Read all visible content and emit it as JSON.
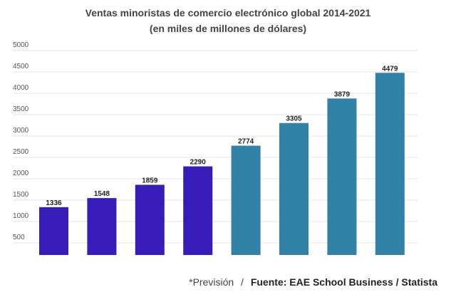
{
  "chart_data": {
    "type": "bar",
    "title": "Ventas minoristas de comercio electrónico global 2014-2021",
    "subtitle": "(en miles de millones de dólares)",
    "values": [
      1336,
      1548,
      1859,
      2290,
      2774,
      3305,
      3879,
      4479
    ],
    "forecast": [
      false,
      false,
      false,
      false,
      true,
      true,
      true,
      true
    ],
    "colors": {
      "actual": "#371cb9",
      "forecast": "#3282a8"
    },
    "yticks": [
      500,
      1000,
      1500,
      2000,
      2500,
      3000,
      3500,
      4000,
      4500,
      5000
    ],
    "ylim": [
      500,
      5000
    ],
    "grid": true,
    "data_labels": true
  },
  "footer": {
    "forecast_note": "*Previsión",
    "separator": "/",
    "source": "Fuente: EAE School Business / Statista"
  }
}
